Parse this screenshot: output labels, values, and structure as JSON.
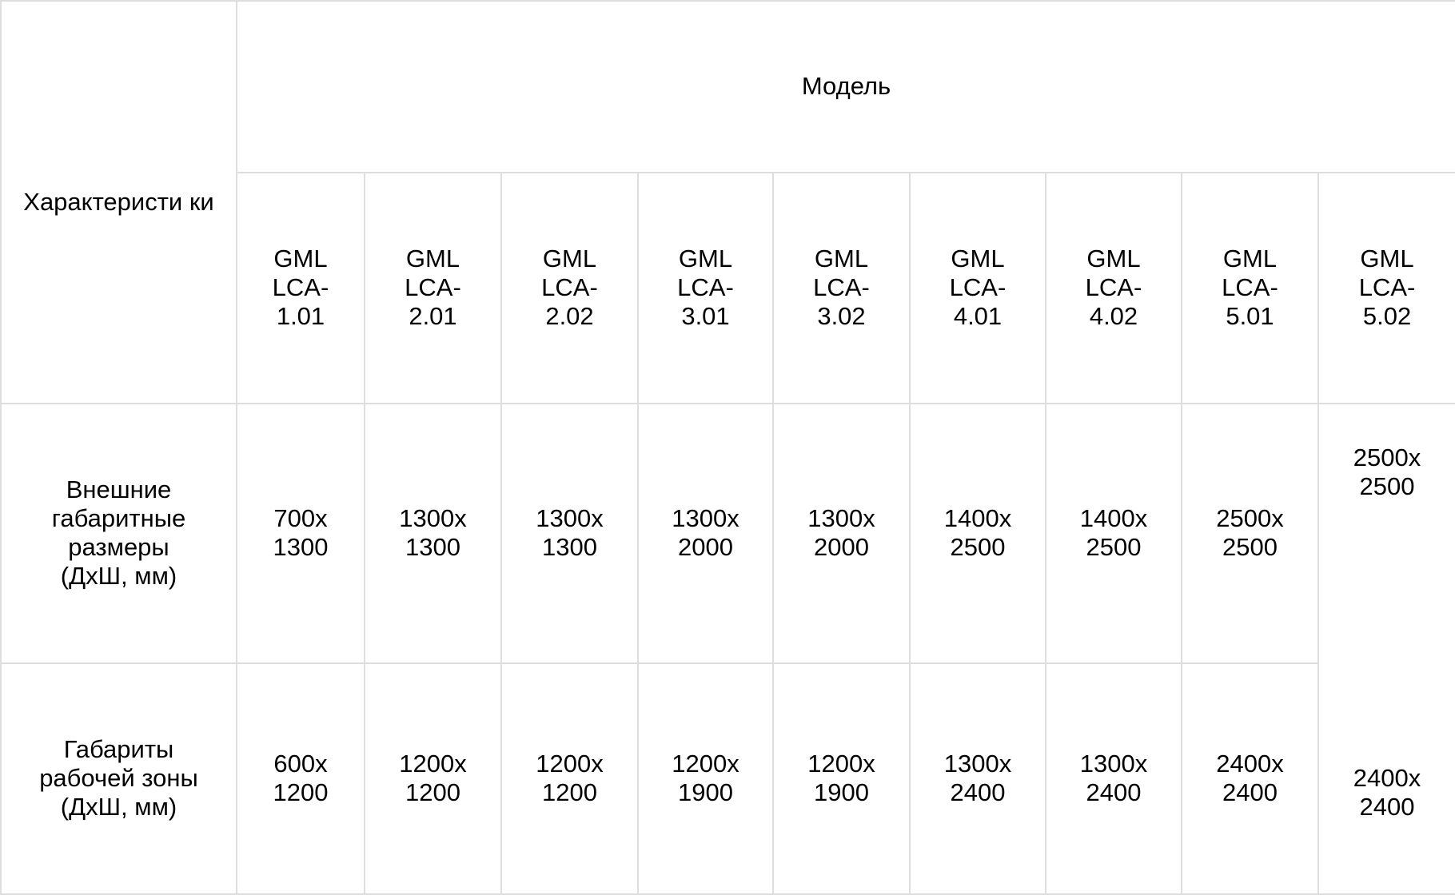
{
  "table": {
    "corner_header": "Характеристи ки",
    "group_header": "Модель",
    "models": [
      [
        "GML",
        "LCA-",
        "1.01"
      ],
      [
        "GML",
        "LCA-",
        "2.01"
      ],
      [
        "GML",
        "LCA-",
        "2.02"
      ],
      [
        "GML",
        "LCA-",
        "3.01"
      ],
      [
        "GML",
        "LCA-",
        "3.02"
      ],
      [
        "GML",
        "LCA-",
        "4.01"
      ],
      [
        "GML",
        "LCA-",
        "4.02"
      ],
      [
        "GML",
        "LCA-",
        "5.01"
      ],
      [
        "GML",
        "LCA-",
        "5.02"
      ]
    ],
    "rows": [
      {
        "label": [
          "Внешние",
          "габаритные",
          "размеры",
          "(ДхШ, мм)"
        ],
        "values": [
          [
            "700x",
            "1300"
          ],
          [
            "1300x",
            "1300"
          ],
          [
            "1300x",
            "1300"
          ],
          [
            "1300x",
            "2000"
          ],
          [
            "1300x",
            "2000"
          ],
          [
            "1400x",
            "2500"
          ],
          [
            "1400x",
            "2500"
          ],
          [
            "2500x",
            "2500"
          ],
          [
            "2500x",
            "2500"
          ]
        ]
      },
      {
        "label": [
          "Габариты",
          "рабочей зоны",
          "(ДхШ, мм)"
        ],
        "values": [
          [
            "600x",
            "1200"
          ],
          [
            "1200x",
            "1200"
          ],
          [
            "1200x",
            "1200"
          ],
          [
            "1200x",
            "1900"
          ],
          [
            "1200x",
            "1900"
          ],
          [
            "1300x",
            "2400"
          ],
          [
            "1300x",
            "2400"
          ],
          [
            "2400x",
            "2400"
          ],
          [
            "2400x",
            "2400"
          ]
        ]
      }
    ]
  }
}
